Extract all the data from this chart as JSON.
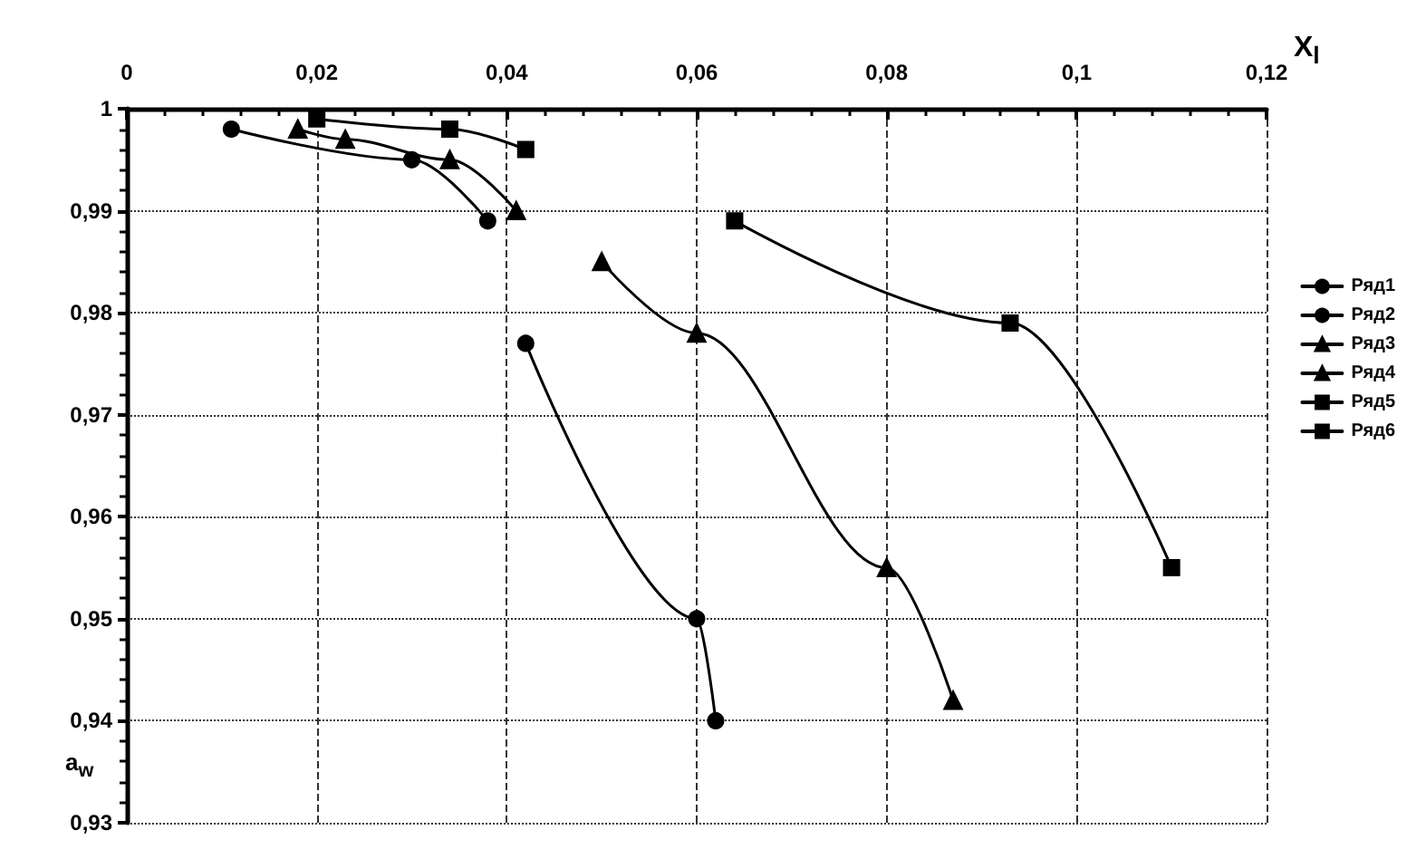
{
  "chart_data": {
    "type": "line",
    "xlabel": "X$_{l}$",
    "ylabel": "a$_{w}$",
    "xlim": [
      0,
      0.12
    ],
    "ylim": [
      0.93,
      1
    ],
    "xticks": [
      {
        "value": 0,
        "label": "0"
      },
      {
        "value": 0.02,
        "label": "0,02"
      },
      {
        "value": 0.04,
        "label": "0,04"
      },
      {
        "value": 0.06,
        "label": "0,06"
      },
      {
        "value": 0.08,
        "label": "0,08"
      },
      {
        "value": 0.1,
        "label": "0,1"
      },
      {
        "value": 0.12,
        "label": "0,12"
      }
    ],
    "yticks": [
      {
        "value": 0.93,
        "label": "0,93"
      },
      {
        "value": 0.94,
        "label": "0,94"
      },
      {
        "value": 0.95,
        "label": "0,95"
      },
      {
        "value": 0.96,
        "label": "0,96"
      },
      {
        "value": 0.97,
        "label": "0,97"
      },
      {
        "value": 0.98,
        "label": "0,98"
      },
      {
        "value": 0.99,
        "label": "0,99"
      },
      {
        "value": 1,
        "label": "1"
      }
    ],
    "grid": true,
    "legend": "right",
    "line_style": "solid",
    "series": [
      {
        "name": "Ряд1",
        "color": "#000000",
        "marker": "circle",
        "x": [
          0.011,
          0.03,
          0.038
        ],
        "values": [
          0.998,
          0.995,
          0.989
        ]
      },
      {
        "name": "Ряд2",
        "color": "#000000",
        "marker": "circle",
        "x": [
          0.042,
          0.06,
          0.062
        ],
        "values": [
          0.977,
          0.95,
          0.94
        ]
      },
      {
        "name": "Ряд3",
        "color": "#000000",
        "marker": "triangle",
        "x": [
          0.018,
          0.023,
          0.034,
          0.041
        ],
        "values": [
          0.998,
          0.997,
          0.995,
          0.99
        ]
      },
      {
        "name": "Ряд4",
        "color": "#000000",
        "marker": "triangle",
        "x": [
          0.05,
          0.06,
          0.08,
          0.087
        ],
        "values": [
          0.985,
          0.978,
          0.955,
          0.942
        ]
      },
      {
        "name": "Ряд5",
        "color": "#000000",
        "marker": "square",
        "x": [
          0.02,
          0.034,
          0.042
        ],
        "values": [
          0.999,
          0.998,
          0.996
        ]
      },
      {
        "name": "Ряд6",
        "color": "#000000",
        "marker": "square",
        "x": [
          0.064,
          0.093,
          0.11
        ],
        "values": [
          0.989,
          0.979,
          0.955
        ]
      }
    ]
  }
}
